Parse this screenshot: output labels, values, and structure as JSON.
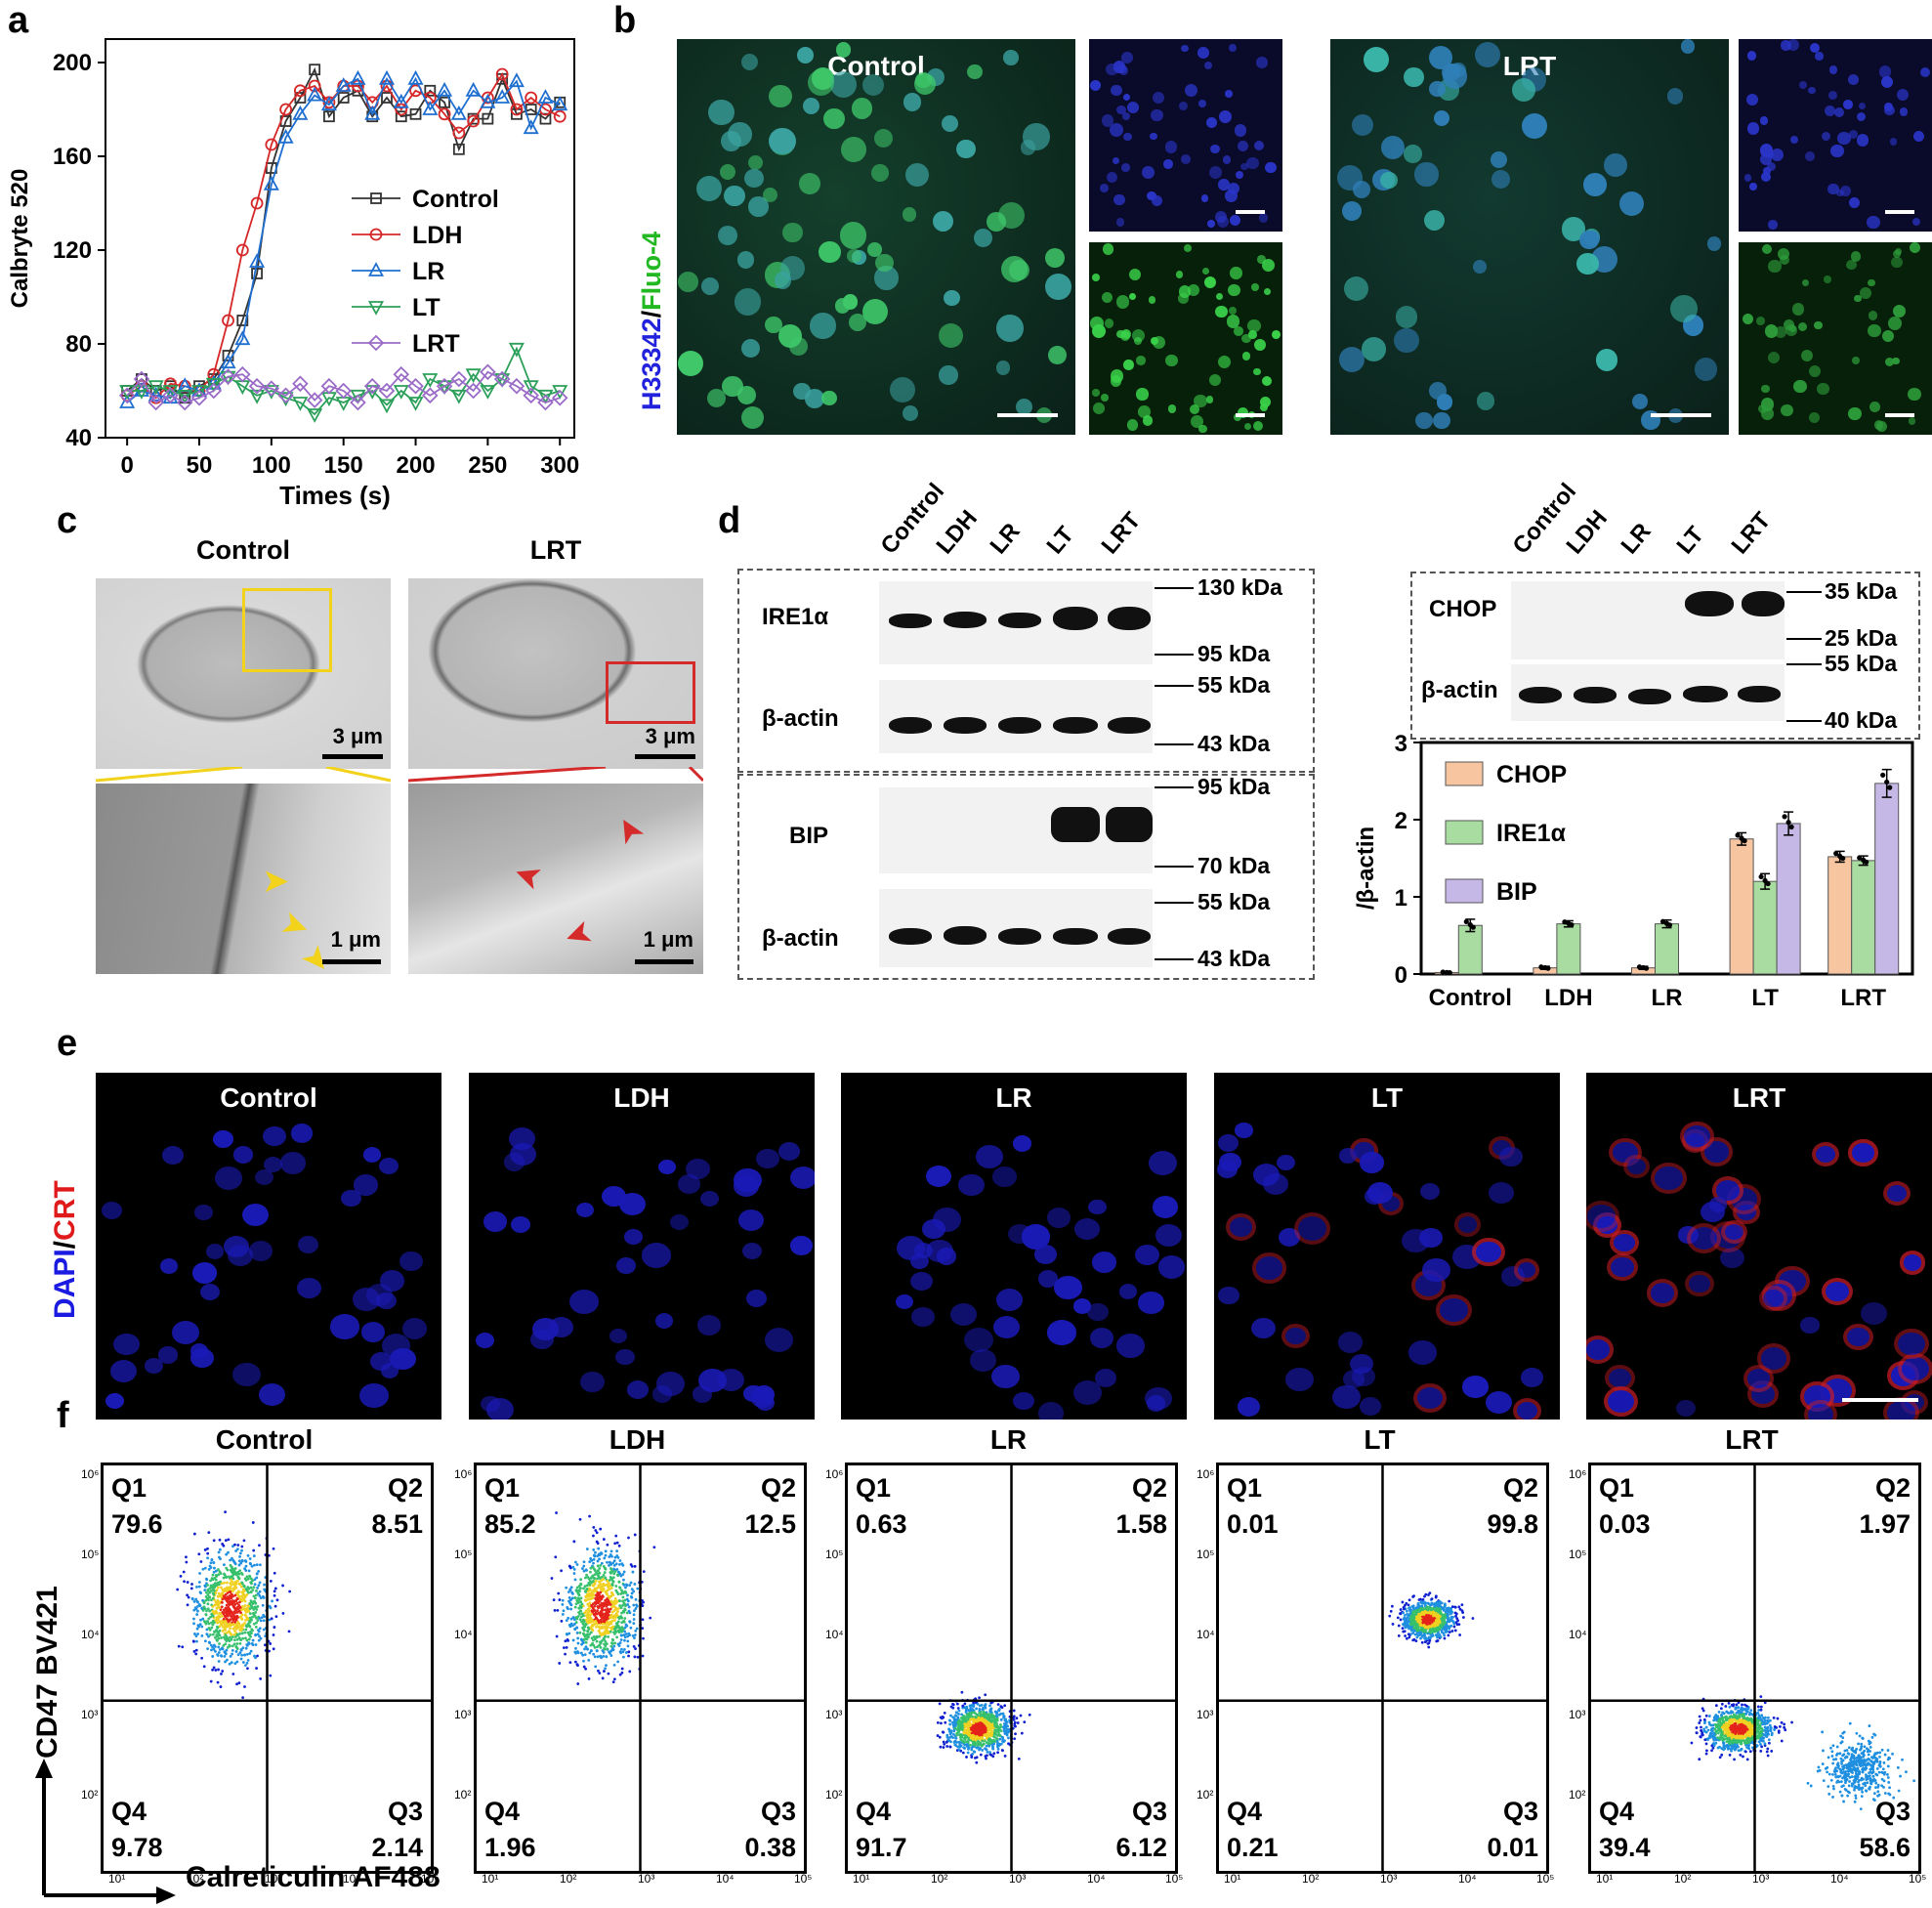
{
  "panels": {
    "a": "a",
    "b": "b",
    "c": "c",
    "d": "d",
    "e": "e",
    "f": "f"
  },
  "panel_a": {
    "chart_data": {
      "type": "line",
      "xlabel": "Times (s)",
      "ylabel": "Calbryte 520",
      "xlim": [
        -15,
        310
      ],
      "ylim": [
        40,
        210
      ],
      "xticks": [
        0,
        50,
        100,
        150,
        200,
        250,
        300
      ],
      "yticks": [
        40,
        80,
        120,
        160,
        200
      ],
      "legend_position": "center-right",
      "x": [
        0,
        10,
        20,
        30,
        40,
        50,
        60,
        70,
        80,
        90,
        100,
        110,
        120,
        130,
        140,
        150,
        160,
        170,
        180,
        190,
        200,
        210,
        220,
        230,
        240,
        250,
        260,
        270,
        280,
        290,
        300
      ],
      "series": [
        {
          "name": "Control",
          "marker": "square",
          "color": "#333333",
          "values": [
            60,
            65,
            60,
            62,
            57,
            62,
            65,
            75,
            90,
            110,
            155,
            175,
            185,
            197,
            177,
            185,
            188,
            177,
            185,
            177,
            178,
            188,
            183,
            163,
            176,
            176,
            193,
            178,
            180,
            176,
            183
          ]
        },
        {
          "name": "LDH",
          "marker": "circle",
          "color": "#d62728",
          "values": [
            58,
            62,
            57,
            63,
            62,
            60,
            67,
            90,
            120,
            140,
            165,
            180,
            188,
            190,
            183,
            190,
            190,
            183,
            190,
            180,
            188,
            185,
            178,
            170,
            175,
            185,
            195,
            180,
            185,
            180,
            177
          ]
        },
        {
          "name": "LR",
          "marker": "triangle-up",
          "color": "#1f6fd1",
          "values": [
            55,
            60,
            58,
            57,
            62,
            60,
            63,
            72,
            82,
            115,
            148,
            168,
            178,
            186,
            182,
            190,
            193,
            178,
            193,
            183,
            193,
            180,
            188,
            178,
            188,
            183,
            185,
            192,
            172,
            185,
            182
          ]
        },
        {
          "name": "LT",
          "marker": "triangle-down",
          "color": "#2ca05a",
          "values": [
            60,
            60,
            62,
            60,
            58,
            60,
            63,
            66,
            62,
            58,
            60,
            57,
            55,
            50,
            57,
            55,
            58,
            60,
            54,
            60,
            55,
            65,
            62,
            58,
            67,
            60,
            65,
            78,
            62,
            58,
            60
          ]
        },
        {
          "name": "LRT",
          "marker": "diamond",
          "color": "#9a6bc7",
          "values": [
            58,
            65,
            55,
            58,
            55,
            57,
            60,
            66,
            67,
            62,
            61,
            58,
            63,
            56,
            62,
            60,
            55,
            62,
            60,
            67,
            62,
            58,
            62,
            65,
            60,
            68,
            65,
            62,
            58,
            55,
            57
          ]
        }
      ]
    }
  },
  "panel_b": {
    "ylabel_blue": "H33342",
    "ylabel_sep": "/",
    "ylabel_green": "Fluo-4",
    "left_title": "Control",
    "right_title": "LRT"
  },
  "panel_c": {
    "col1": "Control",
    "col2": "LRT",
    "sb_top": "3 μm",
    "sb_bottom": "1 μm"
  },
  "panel_d": {
    "lanes": [
      "Control",
      "LDH",
      "LR",
      "LT",
      "LRT"
    ],
    "blot_left": {
      "ire1a": "IRE1α",
      "bactin": "β-actin",
      "bip": "BIP",
      "mw": [
        "130 kDa",
        "95 kDa",
        "55 kDa",
        "43 kDa",
        "95 kDa",
        "70 kDa",
        "55 kDa",
        "43 kDa"
      ]
    },
    "blot_right": {
      "chop": "CHOP",
      "bactin": "β-actin",
      "mw": [
        "35 kDa",
        "25 kDa",
        "55 kDa",
        "40 kDa"
      ]
    },
    "chart_data": {
      "type": "bar",
      "categories": [
        "Control",
        "LDH",
        "LR",
        "LT",
        "LRT"
      ],
      "ylabel": "/β-actin",
      "ylim": [
        0,
        3
      ],
      "yticks": [
        0,
        1,
        2,
        3
      ],
      "legend_position": "top-left",
      "series": [
        {
          "name": "CHOP",
          "color": "#f7c59f",
          "values": [
            0.02,
            0.08,
            0.08,
            1.75,
            1.52
          ],
          "err": [
            0.01,
            0.02,
            0.02,
            0.08,
            0.07
          ]
        },
        {
          "name": "IRE1α",
          "color": "#a8dca0",
          "values": [
            0.63,
            0.65,
            0.65,
            1.2,
            1.47
          ],
          "err": [
            0.08,
            0.04,
            0.05,
            0.1,
            0.06
          ]
        },
        {
          "name": "BIP",
          "color": "#c6b8e6",
          "values": [
            0,
            0,
            0,
            1.95,
            2.47
          ],
          "err": [
            0,
            0,
            0,
            0.15,
            0.18
          ]
        }
      ]
    }
  },
  "panel_e": {
    "ylabel_blue": "DAPI",
    "ylabel_sep": "/",
    "ylabel_red": "CRT",
    "titles": [
      "Control",
      "LDH",
      "LR",
      "LT",
      "LRT"
    ]
  },
  "panel_f": {
    "xlabel": "Calreticulin AF488",
    "ylabel": "CD47 BV421",
    "titles": [
      "Control",
      "LDH",
      "LR",
      "LT",
      "LRT"
    ],
    "quadrants": [
      {
        "Q1": "79.6",
        "Q2": "8.51",
        "Q3": "2.14",
        "Q4": "9.78"
      },
      {
        "Q1": "85.2",
        "Q2": "12.5",
        "Q3": "0.38",
        "Q4": "1.96"
      },
      {
        "Q1": "0.63",
        "Q2": "1.58",
        "Q3": "6.12",
        "Q4": "91.7"
      },
      {
        "Q1": "0.01",
        "Q2": "99.8",
        "Q3": "0.01",
        "Q4": "0.21"
      },
      {
        "Q1": "0.03",
        "Q2": "1.97",
        "Q3": "58.6",
        "Q4": "39.4"
      }
    ],
    "qnames": {
      "q1": "Q1",
      "q2": "Q2",
      "q3": "Q3",
      "q4": "Q4"
    },
    "xticks": [
      "10¹",
      "10²",
      "10³",
      "10⁴",
      "10⁵"
    ],
    "yticks": [
      "10⁶",
      "10⁵",
      "10⁴",
      "10³",
      "10²"
    ]
  }
}
